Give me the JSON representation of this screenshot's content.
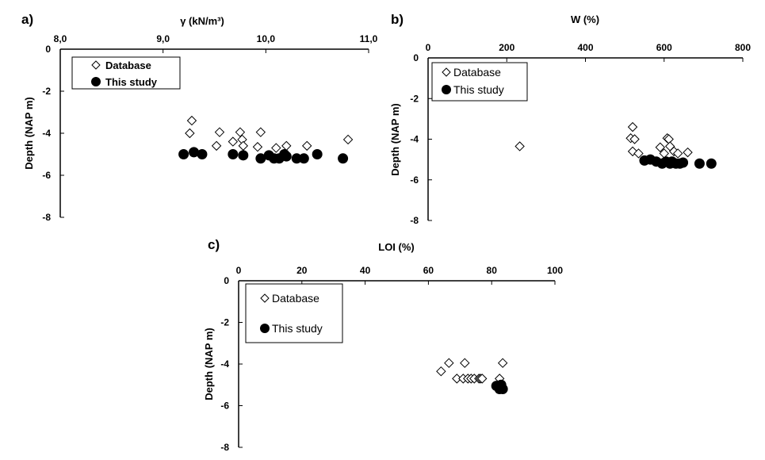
{
  "chart_data": [
    {
      "panel_label": "a)",
      "type": "scatter",
      "xlabel": "γ (kN/m³)",
      "ylabel": "Depth (NAP m)",
      "xlim": [
        8.0,
        11.0
      ],
      "ylim": [
        -8,
        0
      ],
      "xticks": [
        "8,0",
        "9,0",
        "10,0",
        "11,0"
      ],
      "yticks": [
        "0",
        "-2",
        "-4",
        "-6",
        "-8"
      ],
      "legend": [
        "Database",
        "This study"
      ],
      "series": [
        {
          "name": "Database",
          "marker": "open-diamond",
          "points": [
            [
              9.28,
              -3.4
            ],
            [
              9.26,
              -4.0
            ],
            [
              9.55,
              -3.95
            ],
            [
              9.52,
              -4.6
            ],
            [
              9.68,
              -4.4
            ],
            [
              9.75,
              -3.95
            ],
            [
              9.77,
              -4.3
            ],
            [
              9.78,
              -4.6
            ],
            [
              9.95,
              -3.95
            ],
            [
              9.92,
              -4.65
            ],
            [
              10.1,
              -4.7
            ],
            [
              10.2,
              -4.6
            ],
            [
              10.4,
              -4.6
            ],
            [
              10.8,
              -4.3
            ]
          ]
        },
        {
          "name": "This study",
          "marker": "filled-circle",
          "points": [
            [
              9.2,
              -5.0
            ],
            [
              9.3,
              -4.9
            ],
            [
              9.38,
              -5.0
            ],
            [
              9.68,
              -5.0
            ],
            [
              9.78,
              -5.05
            ],
            [
              9.95,
              -5.2
            ],
            [
              10.03,
              -5.05
            ],
            [
              10.08,
              -5.2
            ],
            [
              10.13,
              -5.2
            ],
            [
              10.18,
              -5.0
            ],
            [
              10.2,
              -5.1
            ],
            [
              10.3,
              -5.2
            ],
            [
              10.37,
              -5.2
            ],
            [
              10.5,
              -5.0
            ],
            [
              10.75,
              -5.2
            ]
          ]
        }
      ]
    },
    {
      "panel_label": "b)",
      "type": "scatter",
      "xlabel": "W (%)",
      "ylabel": "Depth (NAP m)",
      "xlim": [
        0,
        800
      ],
      "ylim": [
        -8,
        0
      ],
      "xticks": [
        "0",
        "200",
        "400",
        "600",
        "800"
      ],
      "yticks": [
        "0",
        "-2",
        "-4",
        "-6",
        "-8"
      ],
      "legend": [
        "Database",
        "This study"
      ],
      "series": [
        {
          "name": "Database",
          "marker": "open-diamond",
          "points": [
            [
              233,
              -4.35
            ],
            [
              520,
              -3.4
            ],
            [
              515,
              -3.95
            ],
            [
              525,
              -4.0
            ],
            [
              520,
              -4.6
            ],
            [
              535,
              -4.7
            ],
            [
              590,
              -4.4
            ],
            [
              600,
              -4.7
            ],
            [
              608,
              -3.95
            ],
            [
              612,
              -4.0
            ],
            [
              615,
              -4.35
            ],
            [
              625,
              -4.6
            ],
            [
              635,
              -4.7
            ],
            [
              660,
              -4.65
            ]
          ]
        },
        {
          "name": "This study",
          "marker": "filled-circle",
          "points": [
            [
              550,
              -5.05
            ],
            [
              565,
              -5.0
            ],
            [
              580,
              -5.1
            ],
            [
              595,
              -5.2
            ],
            [
              605,
              -5.1
            ],
            [
              615,
              -5.2
            ],
            [
              620,
              -5.1
            ],
            [
              630,
              -5.2
            ],
            [
              640,
              -5.2
            ],
            [
              648,
              -5.15
            ],
            [
              690,
              -5.2
            ],
            [
              720,
              -5.2
            ]
          ]
        }
      ]
    },
    {
      "panel_label": "c)",
      "type": "scatter",
      "xlabel": "LOI (%)",
      "ylabel": "Depth (NAP m)",
      "xlim": [
        0,
        100
      ],
      "ylim": [
        -8,
        0
      ],
      "xticks": [
        "0",
        "20",
        "40",
        "60",
        "80",
        "100"
      ],
      "yticks": [
        "0",
        "-2",
        "-4",
        "-6",
        "-8"
      ],
      "legend": [
        "Database",
        "This study"
      ],
      "series": [
        {
          "name": "Database",
          "marker": "open-diamond",
          "points": [
            [
              64,
              -4.35
            ],
            [
              66.5,
              -3.95
            ],
            [
              69,
              -4.7
            ],
            [
              71,
              -4.7
            ],
            [
              71.5,
              -3.95
            ],
            [
              72.5,
              -4.7
            ],
            [
              73.5,
              -4.7
            ],
            [
              74.5,
              -4.7
            ],
            [
              76,
              -4.7
            ],
            [
              76.5,
              -4.7
            ],
            [
              77,
              -4.7
            ],
            [
              82.5,
              -4.7
            ],
            [
              83.5,
              -3.95
            ]
          ]
        },
        {
          "name": "This study",
          "marker": "filled-circle",
          "points": [
            [
              81.5,
              -5.05
            ],
            [
              82.5,
              -5.2
            ],
            [
              83,
              -5.0
            ],
            [
              83.5,
              -5.2
            ]
          ]
        }
      ]
    }
  ]
}
